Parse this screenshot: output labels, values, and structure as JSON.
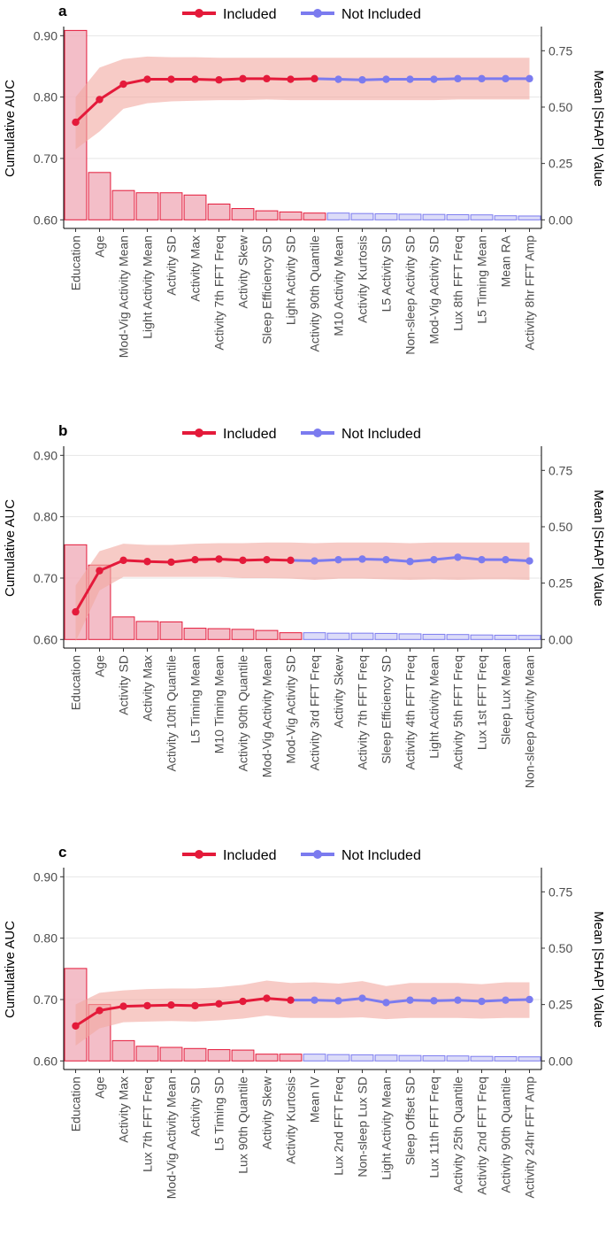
{
  "chart_data": [
    {
      "panel": "a",
      "type": "bar+line",
      "ylabel_left": "Cumulative AUC",
      "ylabel_right": "Mean |SHAP| Value",
      "left_ticks": [
        "0.60",
        "0.70",
        "0.80",
        "0.90"
      ],
      "left_tick_values": [
        0.6,
        0.7,
        0.8,
        0.9
      ],
      "right_ticks": [
        "0.00",
        "0.25",
        "0.50",
        "0.75"
      ],
      "right_tick_values": [
        0.0,
        0.25,
        0.5,
        0.75
      ],
      "ylim_left": [
        0.586,
        0.912
      ],
      "legend": [
        "Included",
        "Not Included"
      ],
      "n_included": 11,
      "categories": [
        "Education",
        "Age",
        "Mod-Vig Activity Mean",
        "Light Activity Mean",
        "Activity SD",
        "Activity Max",
        "Activity 7th FFT Freq",
        "Activity Skew",
        "Sleep Efficiency SD",
        "Light Activity SD",
        "Activity 90th Quantile",
        "M10 Activity Mean",
        "Activity Kurtosis",
        "L5 Activity SD",
        "Non-sleep Activity SD",
        "Mod-Vig Activity SD",
        "Lux 8th FFT Freq",
        "L5 Timing Mean",
        "Mean RA",
        "Activity 8hr FFT Amp"
      ],
      "bar_values": [
        0.84,
        0.21,
        0.13,
        0.12,
        0.12,
        0.11,
        0.07,
        0.05,
        0.04,
        0.035,
        0.03,
        0.03,
        0.028,
        0.027,
        0.025,
        0.024,
        0.023,
        0.022,
        0.018,
        0.017
      ],
      "auc": [
        0.759,
        0.796,
        0.821,
        0.829,
        0.829,
        0.829,
        0.828,
        0.83,
        0.83,
        0.829,
        0.83,
        0.829,
        0.828,
        0.829,
        0.829,
        0.829,
        0.83,
        0.83,
        0.83,
        0.83
      ],
      "ci_lower": [
        0.715,
        0.744,
        0.781,
        0.79,
        0.793,
        0.794,
        0.795,
        0.795,
        0.796,
        0.795,
        0.795,
        0.795,
        0.795,
        0.795,
        0.795,
        0.795,
        0.796,
        0.796,
        0.796,
        0.796
      ],
      "ci_upper": [
        0.8,
        0.848,
        0.862,
        0.866,
        0.865,
        0.865,
        0.864,
        0.864,
        0.864,
        0.864,
        0.864,
        0.864,
        0.864,
        0.864,
        0.864,
        0.864,
        0.864,
        0.864,
        0.864,
        0.864
      ]
    },
    {
      "panel": "b",
      "type": "bar+line",
      "ylabel_left": "Cumulative AUC",
      "ylabel_right": "Mean |SHAP| Value",
      "left_ticks": [
        "0.60",
        "0.70",
        "0.80",
        "0.90"
      ],
      "left_tick_values": [
        0.6,
        0.7,
        0.8,
        0.9
      ],
      "right_ticks": [
        "0.00",
        "0.25",
        "0.50",
        "0.75"
      ],
      "right_tick_values": [
        0.0,
        0.25,
        0.5,
        0.75
      ],
      "ylim_left": [
        0.586,
        0.912
      ],
      "legend": [
        "Included",
        "Not Included"
      ],
      "n_included": 10,
      "categories": [
        "Education",
        "Age",
        "Activity SD",
        "Activity Max",
        "Activity 10th Quantile",
        "L5 Timing Mean",
        "M10 Timing Mean",
        "Activity 90th Quantile",
        "Mod-Vig Activity Mean",
        "Mod-Vig Activity SD",
        "Activity 3rd FFT Freq",
        "Activity Skew",
        "Activity 7th FFT Freq",
        "Sleep Efficiency SD",
        "Activity 4th FFT Freq",
        "Light Activity Mean",
        "Activity 5th FFT Freq",
        "Lux 1st FFT Freq",
        "Sleep Lux Mean",
        "Non-sleep Activity Mean"
      ],
      "bar_values": [
        0.42,
        0.33,
        0.1,
        0.08,
        0.078,
        0.05,
        0.048,
        0.045,
        0.04,
        0.03,
        0.03,
        0.028,
        0.028,
        0.027,
        0.025,
        0.023,
        0.022,
        0.02,
        0.019,
        0.018
      ],
      "auc": [
        0.645,
        0.712,
        0.729,
        0.727,
        0.726,
        0.73,
        0.731,
        0.729,
        0.73,
        0.729,
        0.728,
        0.73,
        0.731,
        0.73,
        0.727,
        0.73,
        0.734,
        0.73,
        0.73,
        0.728
      ],
      "ci_lower": [
        0.597,
        0.68,
        0.702,
        0.702,
        0.702,
        0.702,
        0.702,
        0.7,
        0.7,
        0.699,
        0.697,
        0.699,
        0.699,
        0.698,
        0.697,
        0.698,
        0.697,
        0.698,
        0.698,
        0.697
      ],
      "ci_upper": [
        0.688,
        0.744,
        0.756,
        0.754,
        0.754,
        0.756,
        0.757,
        0.757,
        0.758,
        0.758,
        0.757,
        0.758,
        0.758,
        0.758,
        0.757,
        0.758,
        0.758,
        0.758,
        0.758,
        0.758
      ]
    },
    {
      "panel": "c",
      "type": "bar+line",
      "ylabel_left": "Cumulative AUC",
      "ylabel_right": "Mean |SHAP| Value",
      "left_ticks": [
        "0.60",
        "0.70",
        "0.80",
        "0.90"
      ],
      "left_tick_values": [
        0.6,
        0.7,
        0.8,
        0.9
      ],
      "right_ticks": [
        "0.00",
        "0.25",
        "0.50",
        "0.75"
      ],
      "right_tick_values": [
        0.0,
        0.25,
        0.5,
        0.75
      ],
      "ylim_left": [
        0.586,
        0.912
      ],
      "legend": [
        "Included",
        "Not Included"
      ],
      "n_included": 10,
      "categories": [
        "Education",
        "Age",
        "Activity Max",
        "Lux 7th FFT Freq",
        "Mod-Vig Activity Mean",
        "Activity SD",
        "L5 Timing SD",
        "Lux 90th Quantile",
        "Activity Skew",
        "Activity Kurtosis",
        "Mean IV",
        "Lux 2nd FFT Freq",
        "Non-sleep Lux SD",
        "Light Activity Mean",
        "Sleep Offset SD",
        "Lux 11th FFT Freq",
        "Activity 25th Quantile",
        "Activity 2nd FFT Freq",
        "Activity 90th Quantile",
        "Activity 24hr FFT Amp"
      ],
      "bar_values": [
        0.41,
        0.25,
        0.09,
        0.065,
        0.06,
        0.055,
        0.05,
        0.048,
        0.03,
        0.03,
        0.03,
        0.028,
        0.027,
        0.026,
        0.024,
        0.023,
        0.022,
        0.02,
        0.019,
        0.018
      ],
      "auc": [
        0.657,
        0.682,
        0.689,
        0.69,
        0.691,
        0.69,
        0.693,
        0.697,
        0.702,
        0.699,
        0.699,
        0.698,
        0.702,
        0.695,
        0.699,
        0.698,
        0.699,
        0.697,
        0.699,
        0.7
      ],
      "ci_lower": [
        0.625,
        0.653,
        0.663,
        0.664,
        0.665,
        0.664,
        0.666,
        0.669,
        0.674,
        0.67,
        0.67,
        0.67,
        0.671,
        0.668,
        0.67,
        0.67,
        0.67,
        0.669,
        0.67,
        0.67
      ],
      "ci_upper": [
        0.692,
        0.711,
        0.715,
        0.717,
        0.718,
        0.718,
        0.72,
        0.724,
        0.731,
        0.727,
        0.728,
        0.726,
        0.73,
        0.722,
        0.727,
        0.727,
        0.727,
        0.725,
        0.728,
        0.728
      ]
    }
  ],
  "colors": {
    "included": "#e41a3a",
    "included_bar_fill": "#f1b3be",
    "not_included": "#7b7bef",
    "not_included_bar_fill": "#d6d6f7",
    "ribbon": "#f2a9a0",
    "grid": "#e6e6e6",
    "axis_text": "#4d4d4d"
  }
}
